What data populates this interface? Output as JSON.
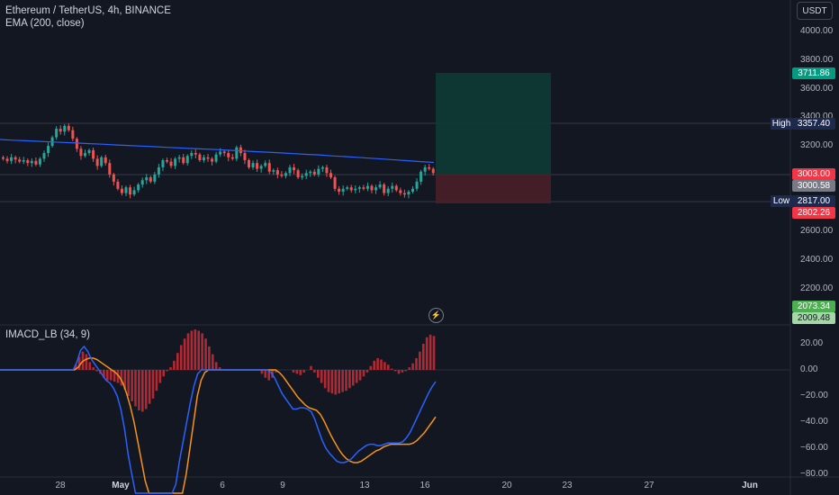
{
  "legend": {
    "symbol_line": "Ethereum / TetherUS, 4h, BINANCE",
    "ema_line": "EMA (200, close)"
  },
  "indicator": {
    "label": "IMACD_LB (34, 9)"
  },
  "currency_button": "USDT",
  "price_axis": [
    "4000.00",
    "3800.00",
    "3600.00",
    "3400.00",
    "3200.00",
    "2600.00",
    "2400.00",
    "2200.00"
  ],
  "indicator_axis": [
    "20.00",
    "0.00",
    "−20.00",
    "−40.00",
    "−60.00",
    "−80.00"
  ],
  "time_axis": [
    {
      "label": "28",
      "bold": false
    },
    {
      "label": "May",
      "bold": true
    },
    {
      "label": "6",
      "bold": false
    },
    {
      "label": "9",
      "bold": false
    },
    {
      "label": "13",
      "bold": false
    },
    {
      "label": "16",
      "bold": false
    },
    {
      "label": "20",
      "bold": false
    },
    {
      "label": "23",
      "bold": false
    },
    {
      "label": "27",
      "bold": false
    },
    {
      "label": "Jun",
      "bold": true
    }
  ],
  "badges": {
    "target": "3711.86",
    "high_label": "High",
    "high_value": "3357.40",
    "entry": "3003.00",
    "last_price": "3000.58",
    "low_label": "Low",
    "low_value": "2817.00",
    "stop": "2802.26",
    "ind_value_1": "2073.34",
    "ind_value_2": "2009.48"
  },
  "colors": {
    "background": "#131722",
    "up": "#26a69a",
    "down": "#ef5350",
    "ema": "#2962ff",
    "histogram": "#b22833",
    "signal": "#f7931a",
    "macd": "#2962ff",
    "target_zone": "#0e3a35",
    "stop_zone": "#4a1f27"
  },
  "icons": {
    "bolt": "lightning-icon"
  },
  "chart_data": {
    "type": "candlestick",
    "symbol": "ETHUSDT",
    "price_range": [
      2100,
      4050
    ],
    "trade_setup": {
      "entry": 3003.0,
      "target": 3711.86,
      "stop": 2802.26
    },
    "high": 3357.4,
    "low": 2817.0,
    "last": 3000.58,
    "closes": [
      3110,
      3095,
      3120,
      3105,
      3090,
      3100,
      3080,
      3095,
      3070,
      3110,
      3150,
      3200,
      3260,
      3320,
      3300,
      3340,
      3310,
      3250,
      3180,
      3130,
      3150,
      3170,
      3110,
      3060,
      3120,
      3080,
      3000,
      2950,
      2900,
      2870,
      2910,
      2860,
      2890,
      2930,
      2960,
      2980,
      2950,
      3000,
      3050,
      3100,
      3090,
      3060,
      3110,
      3120,
      3080,
      3130,
      3150,
      3140,
      3100,
      3120,
      3110,
      3090,
      3140,
      3160,
      3150,
      3120,
      3110,
      3190,
      3150,
      3100,
      3050,
      3080,
      3040,
      3060,
      3080,
      3020,
      3030,
      3000,
      2990,
      3010,
      3050,
      3030,
      2980,
      2990,
      3010,
      3020,
      3000,
      3040,
      3050,
      3010,
      2980,
      2900,
      2880,
      2900,
      2910,
      2890,
      2900,
      2910,
      2900,
      2920,
      2890,
      2910,
      2930,
      2870,
      2900,
      2920,
      2890,
      2870,
      2860,
      2880,
      2900,
      2950,
      3020,
      3050,
      3040,
      3010
    ],
    "ema": [
      3245,
      3240,
      3236,
      3232,
      3228,
      3224,
      3220,
      3216,
      3212,
      3207,
      3203,
      3199,
      3195,
      3190,
      3186,
      3182,
      3178,
      3174,
      3169,
      3165,
      3160,
      3156,
      3151,
      3146,
      3141,
      3137,
      3130,
      3125,
      3120,
      3114,
      3108,
      3102,
      3096,
      3090,
      3084
    ],
    "imacd_hist": [
      0,
      0,
      0,
      0,
      0,
      0,
      0,
      0,
      0,
      0,
      0,
      0,
      0,
      0,
      0,
      0,
      0,
      0,
      0,
      0,
      0,
      4,
      10,
      14,
      12,
      6,
      2,
      -1,
      -3,
      -6,
      -8,
      -8,
      -9,
      -10,
      -12,
      -15,
      -20,
      -24,
      -28,
      -31,
      -32,
      -30,
      -26,
      -22,
      -16,
      -10,
      -5,
      -1,
      2,
      7,
      13,
      19,
      24,
      28,
      30,
      31,
      30,
      28,
      24,
      18,
      12,
      6,
      2,
      0,
      0,
      0,
      0,
      0,
      0,
      0,
      0,
      0,
      0,
      0,
      -3,
      -6,
      -8,
      -6,
      -2,
      0,
      0,
      0,
      0,
      -2,
      -3,
      -4,
      -2,
      0,
      3,
      -2,
      -6,
      -10,
      -14,
      -17,
      -18,
      -19,
      -18,
      -17,
      -16,
      -14,
      -12,
      -10,
      -8,
      -5,
      -2,
      3,
      7,
      9,
      8,
      6,
      4,
      1,
      -1,
      -3,
      -2,
      -1,
      2,
      5,
      9,
      14,
      20,
      25,
      27,
      26
    ],
    "macd_line": [
      0,
      0,
      0,
      0,
      0,
      0,
      0,
      0,
      0,
      0,
      0,
      0,
      0,
      0,
      0,
      0,
      0,
      0,
      0,
      0,
      0,
      6,
      15,
      18,
      14,
      8,
      4,
      0,
      -4,
      -8,
      -10,
      -14,
      -20,
      -30,
      -45,
      -65,
      -80,
      -95,
      -110,
      -125,
      -135,
      -142,
      -148,
      -150,
      -148,
      -140,
      -125,
      -108,
      -88,
      -70,
      -55,
      -40,
      -25,
      -12,
      -3,
      0,
      0,
      0,
      0,
      0,
      0,
      0,
      0,
      0,
      0,
      0,
      0,
      0,
      0,
      0,
      0,
      0,
      0,
      0,
      -2,
      -6,
      -12,
      -18,
      -22,
      -26,
      -30,
      -30,
      -29,
      -29,
      -30,
      -32,
      -38,
      -46,
      -54,
      -60,
      -64,
      -67,
      -70,
      -71,
      -71,
      -70,
      -68,
      -65,
      -62,
      -60,
      -58,
      -57,
      -57,
      -58,
      -58,
      -57,
      -56,
      -56,
      -56,
      -56,
      -55,
      -52,
      -48,
      -42,
      -36,
      -30,
      -24,
      -18,
      -13,
      -9
    ],
    "signal_line": [
      0,
      0,
      0,
      0,
      0,
      0,
      0,
      0,
      0,
      0,
      0,
      0,
      0,
      0,
      0,
      0,
      0,
      0,
      0,
      0,
      0,
      2,
      6,
      8,
      9,
      9,
      8,
      6,
      4,
      2,
      0,
      -2,
      -5,
      -10,
      -18,
      -28,
      -40,
      -55,
      -70,
      -85,
      -100,
      -112,
      -122,
      -130,
      -136,
      -140,
      -138,
      -130,
      -118,
      -100,
      -80,
      -60,
      -40,
      -20,
      -8,
      -2,
      0,
      0,
      0,
      0,
      0,
      0,
      0,
      0,
      0,
      0,
      0,
      0,
      0,
      0,
      0,
      0,
      0,
      0,
      0,
      -2,
      -5,
      -9,
      -13,
      -17,
      -21,
      -24,
      -27,
      -29,
      -30,
      -31,
      -34,
      -39,
      -45,
      -51,
      -56,
      -61,
      -65,
      -68,
      -70,
      -71,
      -71,
      -70,
      -68,
      -66,
      -64,
      -62,
      -61,
      -59,
      -58,
      -57,
      -57,
      -57,
      -57,
      -57,
      -57,
      -56,
      -54,
      -51,
      -48,
      -44,
      -40,
      -36
    ]
  }
}
